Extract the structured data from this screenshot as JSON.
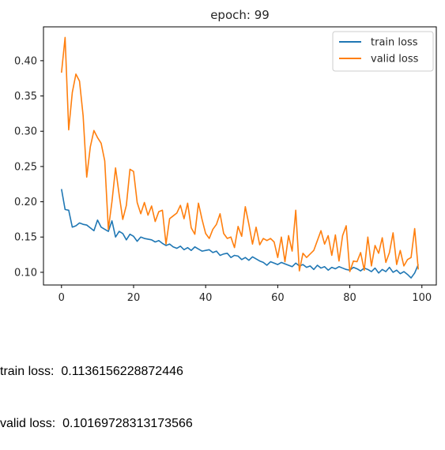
{
  "chart_data": {
    "type": "line",
    "title": "epoch: 99",
    "xlabel": "",
    "ylabel": "",
    "xlim": [
      -5,
      104
    ],
    "ylim": [
      0.082,
      0.448
    ],
    "x_ticks": [
      0,
      20,
      40,
      60,
      80,
      100
    ],
    "y_ticks": [
      0.1,
      0.15,
      0.2,
      0.25,
      0.3,
      0.35,
      0.4
    ],
    "grid": false,
    "legend_position": "upper-right",
    "series": [
      {
        "name": "train loss",
        "color": "#1f77b4",
        "values": [
          0.218,
          0.189,
          0.188,
          0.164,
          0.166,
          0.17,
          0.168,
          0.167,
          0.163,
          0.159,
          0.174,
          0.164,
          0.161,
          0.158,
          0.173,
          0.15,
          0.158,
          0.155,
          0.146,
          0.154,
          0.151,
          0.144,
          0.15,
          0.148,
          0.147,
          0.146,
          0.143,
          0.145,
          0.141,
          0.138,
          0.14,
          0.136,
          0.134,
          0.137,
          0.132,
          0.135,
          0.131,
          0.136,
          0.133,
          0.13,
          0.131,
          0.132,
          0.128,
          0.13,
          0.124,
          0.126,
          0.127,
          0.121,
          0.124,
          0.123,
          0.118,
          0.121,
          0.117,
          0.122,
          0.119,
          0.116,
          0.114,
          0.11,
          0.115,
          0.113,
          0.111,
          0.114,
          0.112,
          0.11,
          0.108,
          0.113,
          0.109,
          0.111,
          0.107,
          0.109,
          0.104,
          0.11,
          0.106,
          0.108,
          0.103,
          0.107,
          0.105,
          0.108,
          0.106,
          0.104,
          0.103,
          0.107,
          0.105,
          0.102,
          0.106,
          0.104,
          0.101,
          0.106,
          0.099,
          0.104,
          0.101,
          0.107,
          0.1,
          0.103,
          0.098,
          0.101,
          0.097,
          0.092,
          0.099,
          0.111
        ]
      },
      {
        "name": "valid loss",
        "color": "#ff7f0e",
        "values": [
          0.383,
          0.433,
          0.302,
          0.355,
          0.381,
          0.371,
          0.322,
          0.235,
          0.278,
          0.301,
          0.291,
          0.283,
          0.258,
          0.161,
          0.2,
          0.248,
          0.21,
          0.175,
          0.195,
          0.246,
          0.243,
          0.199,
          0.183,
          0.199,
          0.181,
          0.194,
          0.172,
          0.186,
          0.188,
          0.14,
          0.176,
          0.18,
          0.184,
          0.195,
          0.176,
          0.198,
          0.163,
          0.154,
          0.198,
          0.175,
          0.155,
          0.148,
          0.161,
          0.168,
          0.183,
          0.155,
          0.148,
          0.15,
          0.135,
          0.165,
          0.151,
          0.193,
          0.168,
          0.14,
          0.164,
          0.139,
          0.148,
          0.145,
          0.148,
          0.143,
          0.121,
          0.15,
          0.115,
          0.152,
          0.13,
          0.188,
          0.102,
          0.127,
          0.121,
          0.126,
          0.131,
          0.145,
          0.159,
          0.14,
          0.152,
          0.124,
          0.153,
          0.116,
          0.152,
          0.166,
          0.101,
          0.116,
          0.115,
          0.128,
          0.103,
          0.15,
          0.109,
          0.138,
          0.127,
          0.149,
          0.114,
          0.128,
          0.156,
          0.111,
          0.131,
          0.109,
          0.118,
          0.121,
          0.162,
          0.104
        ]
      }
    ]
  },
  "output": {
    "train_prefix": "train loss:  ",
    "train_value": "0.1136156228872446",
    "valid_prefix": "valid loss:  ",
    "valid_value": "0.10169728313173566"
  }
}
